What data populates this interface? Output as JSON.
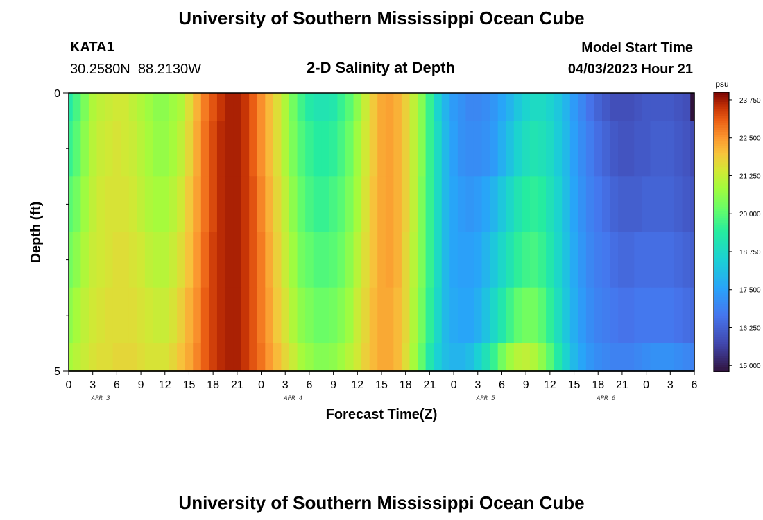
{
  "header": {
    "title": "University of Southern Mississippi Ocean Cube",
    "station": "KATA1",
    "location": "30.2580N  88.2130W",
    "plot_title": "2-D Salinity at Depth",
    "start_label": "Model Start Time",
    "start_value": "04/03/2023 Hour 21"
  },
  "footer": {
    "title": "University of Southern Mississippi Ocean Cube"
  },
  "chart_data": {
    "type": "heatmap",
    "title": "2-D Salinity at Depth",
    "xlabel": "Forecast Time(Z)",
    "ylabel": "Depth (ft)",
    "x_tick_labels": [
      "0",
      "3",
      "6",
      "9",
      "12",
      "15",
      "18",
      "21",
      "0",
      "3",
      "6",
      "9",
      "12",
      "15",
      "18",
      "21",
      "0",
      "3",
      "6",
      "9",
      "12",
      "15",
      "18",
      "21",
      "0",
      "3",
      "6"
    ],
    "day_labels": [
      {
        "label": "APR 3",
        "at_hour": 4
      },
      {
        "label": "APR 4",
        "at_hour": 28
      },
      {
        "label": "APR 5",
        "at_hour": 52
      },
      {
        "label": "APR 6",
        "at_hour": 67
      }
    ],
    "hours": [
      0,
      1,
      2,
      3,
      4,
      5,
      6,
      7,
      8,
      9,
      10,
      11,
      12,
      13,
      14,
      15,
      16,
      17,
      18,
      19,
      20,
      21,
      22,
      23,
      24,
      25,
      26,
      27,
      28,
      29,
      30,
      31,
      32,
      33,
      34,
      35,
      36,
      37,
      38,
      39,
      40,
      41,
      42,
      43,
      44,
      45,
      46,
      47,
      48,
      49,
      50,
      51,
      52,
      53,
      54,
      55,
      56,
      57,
      58,
      59,
      60,
      61,
      62,
      63,
      64,
      65,
      66,
      67,
      68,
      69,
      70,
      71,
      72,
      73,
      74,
      75,
      76,
      77,
      78
    ],
    "y_tick_labels": [
      "0",
      "5"
    ],
    "depth_range": [
      0,
      5
    ],
    "depth_edges": [
      0,
      0.5,
      1.5,
      2.5,
      3.5,
      4.5,
      5
    ],
    "colorbar": {
      "unit": "psu",
      "min": 14.8,
      "max": 24.0,
      "tick_labels": [
        "23.750",
        "22.500",
        "21.250",
        "20.000",
        "18.750",
        "17.500",
        "16.250",
        "15.000"
      ],
      "tick_values": [
        23.75,
        22.5,
        21.25,
        20.0,
        18.75,
        17.5,
        16.25,
        15.0
      ]
    },
    "salinity_rows": [
      [
        19.3,
        19.8,
        20.4,
        21.0,
        21.2,
        21.3,
        21.4,
        21.4,
        21.2,
        21.0,
        20.8,
        20.6,
        20.6,
        20.8,
        21.0,
        21.6,
        22.2,
        22.8,
        23.2,
        23.5,
        23.7,
        23.7,
        23.5,
        23.1,
        22.6,
        22.1,
        21.6,
        21.0,
        20.3,
        19.7,
        19.3,
        19.1,
        19.1,
        19.2,
        19.6,
        20.0,
        20.6,
        21.3,
        21.9,
        22.3,
        22.4,
        22.2,
        21.8,
        21.2,
        20.5,
        19.6,
        18.6,
        17.9,
        17.4,
        17.2,
        17.0,
        17.0,
        17.1,
        17.3,
        17.6,
        17.9,
        18.3,
        18.6,
        18.8,
        18.8,
        18.6,
        18.3,
        17.9,
        17.4,
        17.0,
        16.6,
        16.3,
        16.1,
        15.9,
        15.9,
        15.9,
        16.0,
        16.1,
        16.1,
        16.1,
        16.1,
        16.0,
        15.9,
        14.8
      ],
      [
        19.6,
        20.0,
        20.6,
        21.1,
        21.3,
        21.4,
        21.5,
        21.4,
        21.3,
        21.1,
        20.9,
        20.7,
        20.7,
        20.9,
        21.2,
        21.7,
        22.3,
        22.9,
        23.3,
        23.6,
        23.7,
        23.7,
        23.5,
        23.1,
        22.6,
        22.1,
        21.6,
        21.0,
        20.4,
        19.9,
        19.6,
        19.4,
        19.4,
        19.5,
        19.8,
        20.2,
        20.8,
        21.4,
        21.9,
        22.3,
        22.4,
        22.2,
        21.8,
        21.2,
        20.5,
        19.6,
        18.8,
        18.0,
        17.5,
        17.2,
        17.1,
        17.1,
        17.2,
        17.4,
        17.8,
        18.2,
        18.6,
        18.9,
        19.1,
        19.0,
        18.8,
        18.4,
        18.0,
        17.5,
        17.1,
        16.8,
        16.5,
        16.3,
        16.1,
        16.0,
        16.0,
        16.1,
        16.1,
        16.2,
        16.2,
        16.2,
        16.1,
        16.0,
        15.8
      ],
      [
        20.0,
        20.3,
        20.8,
        21.2,
        21.4,
        21.5,
        21.5,
        21.5,
        21.4,
        21.2,
        21.0,
        20.9,
        20.9,
        21.1,
        21.4,
        21.9,
        22.4,
        22.9,
        23.3,
        23.6,
        23.7,
        23.7,
        23.5,
        23.2,
        22.7,
        22.2,
        21.7,
        21.2,
        20.6,
        20.1,
        19.8,
        19.6,
        19.6,
        19.8,
        20.0,
        20.4,
        20.9,
        21.5,
        22.0,
        22.3,
        22.4,
        22.2,
        21.8,
        21.2,
        20.4,
        19.6,
        18.8,
        18.0,
        17.6,
        17.4,
        17.3,
        17.4,
        17.6,
        17.9,
        18.3,
        18.7,
        19.1,
        19.4,
        19.5,
        19.4,
        19.0,
        18.6,
        18.1,
        17.6,
        17.2,
        16.9,
        16.7,
        16.5,
        16.3,
        16.2,
        16.2,
        16.2,
        16.3,
        16.3,
        16.3,
        16.3,
        16.2,
        16.1,
        16.0
      ],
      [
        20.3,
        20.6,
        21.0,
        21.3,
        21.4,
        21.5,
        21.6,
        21.6,
        21.5,
        21.4,
        21.2,
        21.1,
        21.1,
        21.3,
        21.6,
        22.0,
        22.5,
        23.0,
        23.4,
        23.6,
        23.7,
        23.7,
        23.5,
        23.2,
        22.8,
        22.3,
        21.8,
        21.3,
        20.8,
        20.3,
        20.1,
        19.9,
        19.9,
        20.0,
        20.2,
        20.6,
        21.1,
        21.6,
        22.0,
        22.3,
        22.4,
        22.2,
        21.7,
        21.1,
        20.4,
        19.6,
        18.8,
        18.0,
        17.6,
        17.5,
        17.5,
        17.6,
        17.9,
        18.3,
        18.7,
        19.1,
        19.5,
        19.7,
        19.8,
        19.6,
        19.2,
        18.7,
        18.2,
        17.7,
        17.3,
        17.0,
        16.8,
        16.7,
        16.5,
        16.4,
        16.4,
        16.5,
        16.5,
        16.5,
        16.5,
        16.5,
        16.4,
        16.3,
        16.2
      ],
      [
        20.6,
        20.9,
        21.2,
        21.4,
        21.5,
        21.6,
        21.6,
        21.6,
        21.6,
        21.5,
        21.4,
        21.3,
        21.3,
        21.5,
        21.8,
        22.2,
        22.6,
        23.1,
        23.4,
        23.6,
        23.7,
        23.7,
        23.5,
        23.2,
        22.8,
        22.4,
        21.9,
        21.5,
        21.0,
        20.6,
        20.4,
        20.2,
        20.2,
        20.3,
        20.5,
        20.8,
        21.3,
        21.7,
        22.1,
        22.3,
        22.3,
        22.1,
        21.7,
        21.0,
        20.3,
        19.5,
        18.7,
        18.0,
        17.7,
        17.6,
        17.6,
        17.8,
        18.2,
        18.7,
        19.2,
        19.7,
        20.1,
        20.3,
        20.3,
        20.0,
        19.5,
        18.9,
        18.3,
        17.8,
        17.4,
        17.1,
        16.9,
        16.8,
        16.7,
        16.6,
        16.6,
        16.7,
        16.7,
        16.7,
        16.7,
        16.7,
        16.6,
        16.5,
        16.4
      ],
      [
        20.9,
        21.1,
        21.3,
        21.5,
        21.6,
        21.6,
        21.7,
        21.7,
        21.7,
        21.6,
        21.5,
        21.5,
        21.5,
        21.7,
        22.0,
        22.3,
        22.7,
        23.1,
        23.4,
        23.6,
        23.7,
        23.7,
        23.5,
        23.2,
        22.9,
        22.5,
        22.1,
        21.7,
        21.3,
        20.9,
        20.7,
        20.5,
        20.5,
        20.6,
        20.8,
        21.1,
        21.4,
        21.8,
        22.1,
        22.3,
        22.3,
        22.1,
        21.6,
        20.9,
        20.1,
        19.2,
        18.5,
        18.1,
        17.9,
        17.9,
        18.1,
        18.5,
        19.0,
        19.6,
        20.3,
        20.8,
        21.1,
        21.2,
        21.0,
        20.6,
        20.0,
        19.3,
        18.6,
        18.0,
        17.6,
        17.3,
        17.1,
        17.0,
        16.9,
        16.9,
        16.9,
        17.0,
        17.1,
        17.2,
        17.2,
        17.2,
        17.1,
        17.0,
        16.9
      ]
    ]
  }
}
